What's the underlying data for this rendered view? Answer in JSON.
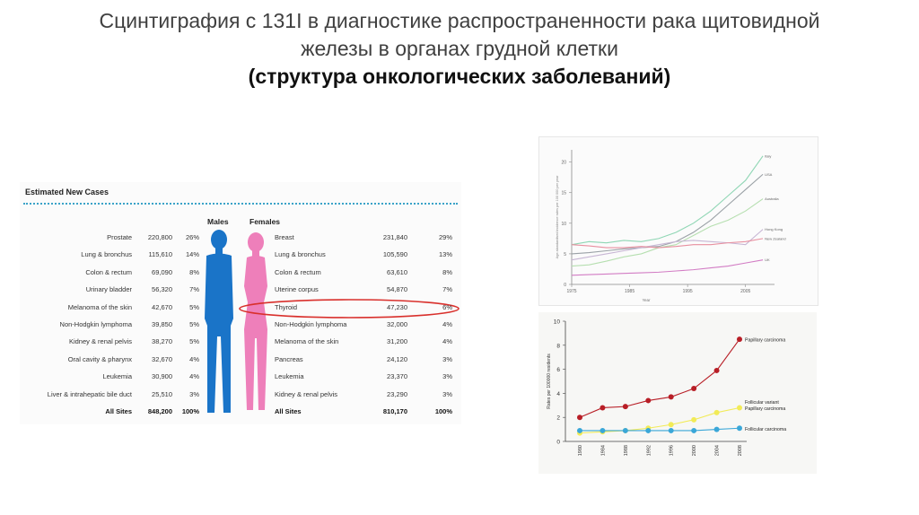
{
  "slide": {
    "title_line1": "Сцинтиграфия с 131I в диагностике распространенности рака щитовидной",
    "title_line2": "железы в органах грудной клетки",
    "title_line3": "(структура онкологических заболеваний)"
  },
  "cases_table": {
    "heading": "Estimated New Cases",
    "males_label": "Males",
    "females_label": "Females",
    "rows": [
      {
        "m_site": "Prostate",
        "m_cases": "220,800",
        "m_pct": "26%",
        "f_site": "Breast",
        "f_cases": "231,840",
        "f_pct": "29%"
      },
      {
        "m_site": "Lung & bronchus",
        "m_cases": "115,610",
        "m_pct": "14%",
        "f_site": "Lung & bronchus",
        "f_cases": "105,590",
        "f_pct": "13%"
      },
      {
        "m_site": "Colon & rectum",
        "m_cases": "69,090",
        "m_pct": "8%",
        "f_site": "Colon & rectum",
        "f_cases": "63,610",
        "f_pct": "8%"
      },
      {
        "m_site": "Urinary bladder",
        "m_cases": "56,320",
        "m_pct": "7%",
        "f_site": "Uterine corpus",
        "f_cases": "54,870",
        "f_pct": "7%"
      },
      {
        "m_site": "Melanoma of the skin",
        "m_cases": "42,670",
        "m_pct": "5%",
        "f_site": "Thyroid",
        "f_cases": "47,230",
        "f_pct": "6%"
      },
      {
        "m_site": "Non-Hodgkin lymphoma",
        "m_cases": "39,850",
        "m_pct": "5%",
        "f_site": "Non-Hodgkin lymphoma",
        "f_cases": "32,000",
        "f_pct": "4%"
      },
      {
        "m_site": "Kidney & renal pelvis",
        "m_cases": "38,270",
        "m_pct": "5%",
        "f_site": "Melanoma of the skin",
        "f_cases": "31,200",
        "f_pct": "4%"
      },
      {
        "m_site": "Oral cavity & pharynx",
        "m_cases": "32,670",
        "m_pct": "4%",
        "f_site": "Pancreas",
        "f_cases": "24,120",
        "f_pct": "3%"
      },
      {
        "m_site": "Leukemia",
        "m_cases": "30,900",
        "m_pct": "4%",
        "f_site": "Leukemia",
        "f_cases": "23,370",
        "f_pct": "3%"
      },
      {
        "m_site": "Liver & intrahepatic bile duct",
        "m_cases": "25,510",
        "m_pct": "3%",
        "f_site": "Kidney & renal pelvis",
        "f_cases": "23,290",
        "f_pct": "3%"
      }
    ],
    "total": {
      "m_site": "All Sites",
      "m_cases": "848,200",
      "m_pct": "100%",
      "f_site": "All Sites",
      "f_cases": "810,170",
      "f_pct": "100%"
    },
    "highlight_row": "Thyroid",
    "male_color": "#1a74c8",
    "female_color": "#ee7fba",
    "highlight_color": "#d9302c"
  },
  "chart_data": [
    {
      "type": "line",
      "x": [
        1975,
        1978,
        1981,
        1984,
        1987,
        1990,
        1993,
        1996,
        1999,
        2002,
        2005,
        2008
      ],
      "xticks": [
        "1975",
        "1985",
        "1995",
        "2005"
      ],
      "yticks": [
        "0",
        "5",
        "10",
        "15",
        "20"
      ],
      "ylim": [
        0,
        22
      ],
      "xlabel": "Year",
      "ylabel": "Age-standardised incidence rates per 100 000 per year",
      "series": [
        {
          "name": "Italy",
          "color": "#8fd6b4",
          "values": [
            6.5,
            7.0,
            6.8,
            7.2,
            7.0,
            7.5,
            8.5,
            10.0,
            12.0,
            14.5,
            17.0,
            21.0
          ]
        },
        {
          "name": "USA",
          "color": "#9aa1a6",
          "values": [
            5.0,
            5.2,
            5.5,
            5.8,
            6.0,
            6.2,
            7.0,
            8.5,
            10.5,
            13.0,
            15.5,
            18.0
          ]
        },
        {
          "name": "Australia",
          "color": "#b6dfb0",
          "values": [
            3.0,
            3.2,
            3.8,
            4.5,
            5.0,
            6.0,
            6.5,
            8.0,
            9.5,
            10.5,
            12.0,
            14.0
          ]
        },
        {
          "name": "Hong Kong",
          "color": "#c7b6d4",
          "values": [
            4.0,
            4.5,
            5.0,
            5.5,
            6.0,
            6.5,
            7.0,
            7.2,
            7.0,
            6.8,
            6.5,
            9.0
          ]
        },
        {
          "name": "New Zealand",
          "color": "#e88f9f",
          "values": [
            6.5,
            6.3,
            6.0,
            6.0,
            6.2,
            6.0,
            6.2,
            6.5,
            6.5,
            6.8,
            7.0,
            7.5
          ]
        },
        {
          "name": "UK",
          "color": "#d27cc4",
          "values": [
            1.5,
            1.6,
            1.7,
            1.8,
            1.9,
            2.0,
            2.2,
            2.4,
            2.7,
            3.0,
            3.5,
            4.0
          ]
        }
      ]
    },
    {
      "type": "line",
      "categories": [
        "1980",
        "1984",
        "1988",
        "1992",
        "1996",
        "2000",
        "2004",
        "2008"
      ],
      "yticks": [
        "0",
        "2",
        "4",
        "6",
        "8",
        "10"
      ],
      "ylim": [
        0,
        10
      ],
      "ylabel": "Rates per 100000 residents",
      "series": [
        {
          "name": "Papillary carcinoma",
          "color": "#b81e26",
          "values": [
            2.0,
            2.8,
            2.9,
            3.4,
            3.7,
            4.4,
            5.9,
            8.5
          ]
        },
        {
          "name": "Follicular variant Papillary carcinoma",
          "color": "#f2eb57",
          "values": [
            0.7,
            0.8,
            0.9,
            1.1,
            1.4,
            1.8,
            2.4,
            2.8
          ]
        },
        {
          "name": "Follicular carcinoma",
          "color": "#3aa7d8",
          "values": [
            0.9,
            0.9,
            0.9,
            0.9,
            0.9,
            0.9,
            1.0,
            1.1
          ]
        }
      ]
    }
  ]
}
